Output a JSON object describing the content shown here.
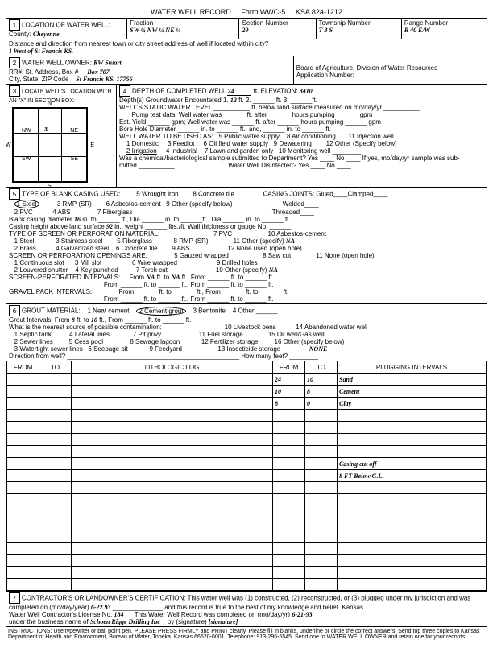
{
  "header": {
    "title": "WATER WELL RECORD",
    "form": "Form WWC-5",
    "ksa": "KSA 82a-1212"
  },
  "sec1": {
    "label": "LOCATION OF WATER WELL:",
    "county_label": "County:",
    "county": "Cheyenne",
    "fraction_label": "Fraction",
    "fraction": "SW ¼ NW ¼ NE ¼",
    "section_label": "Section Number",
    "section": "29",
    "township_label": "Township Number",
    "township": "T    3    S",
    "range_label": "Range Number",
    "range": "R   40   E/W",
    "distance_label": "Distance and direction from nearest town or city street address of well if located within city?",
    "distance": "1 West of St Francis KS."
  },
  "sec2": {
    "label": "WATER WELL OWNER:",
    "owner": "RW Stuart",
    "rr_label": "RR#, St. Address, Box #",
    "rr": "Box 707",
    "city_label": "City, State, ZIP Code",
    "city": "St Francis KS. 17756",
    "board": "Board of Agriculture, Division of Water Resources",
    "app_label": "Application Number:"
  },
  "sec3": {
    "label": "LOCATE WELL'S LOCATION WITH AN \"X\" IN SECTION BOX:",
    "nw": "NW",
    "ne": "NE",
    "sw": "SW",
    "se": "SE",
    "w": "W",
    "e": "E",
    "n": "N",
    "s": "S",
    "mile": "1 Mile"
  },
  "sec4": {
    "depth_label": "DEPTH OF COMPLETED WELL",
    "depth": "24",
    "depth_unit": "ft. ELEVATION:",
    "elev": "3410",
    "gw_label": "Depth(s) Groundwater Encountered   1.",
    "gw1": "12",
    "gw_mid": "ft.   2.",
    "gw_end": "ft.   3.",
    "gw_ft": "ft.",
    "swl_label": "WELL'S STATIC WATER LEVEL",
    "swl_end": "ft. below land surface measured on mo/day/yr",
    "pump_label": "Pump test data:  Well water was",
    "pump_end": "ft. after",
    "pump_hrs": "hours pumping",
    "pump_gpm": "gpm",
    "est_label": "Est. Yield",
    "est_mid": "gpm;  Well water was",
    "bore_label": "Bore Hole Diameter",
    "bore_mid": "in. to",
    "bore_end": "ft., and,",
    "bore_ft": "in. to",
    "bore_ft2": "ft.",
    "use_label": "WELL WATER TO BE USED AS:",
    "u1": "1 Domestic",
    "u2": "2 Irrigation",
    "u3": "3 Feedlot",
    "u4": "4 Industrial",
    "u5": "5 Public water supply",
    "u6": "6 Oil field water supply",
    "u7": "7 Lawn and garden only",
    "u8": "8 Air conditioning",
    "u9": "9 Dewatering",
    "u10": "10 Monitoring well",
    "u11": "11 Injection well",
    "u12": "12 Other (Specify below)",
    "chem_label": "Was a chemical/bacteriological sample submitted to Department? Yes",
    "chem_mid": "No",
    "chem_end": "If yes, mo/day/yr sample was sub-",
    "chem2": "mitted",
    "dis_label": "Water Well Disinfected?  Yes",
    "dis_no": "No"
  },
  "sec5": {
    "label": "TYPE OF BLANK CASING USED:",
    "c1": "1 Steel",
    "c2": "2 PVC",
    "c3": "3 RMP (SR)",
    "c4": "4 ABS",
    "c5": "5 Wrought iron",
    "c6": "6 Asbestos-cement",
    "c7": "7 Fiberglass",
    "c8": "8 Concrete tile",
    "c9": "9 Other (specify below)",
    "joints_label": "CASING JOINTS: Glued",
    "joints_c": "Clamped",
    "joints_w": "Welded",
    "joints_t": "Threaded",
    "bcd_label": "Blank casing diameter",
    "bcd": "16",
    "bcd_mid": "in. to",
    "bcd_ft": "ft., Dia",
    "bcd_end": "in. to",
    "ch_label": "Casing height above land surface",
    "ch": "92",
    "ch_mid": "in., weight",
    "ch_end": "lbs./ft. Wall thickness or gauge No.",
    "screen_label": "TYPE OF SCREEN OR PERFORATION MATERIAL:",
    "s1": "1 Steel",
    "s2": "2 Brass",
    "s3": "3 Stainless steel",
    "s4": "4 Galvanized steel",
    "s5": "5 Fiberglass",
    "s6": "6 Concrete tile",
    "s7": "7 PVC",
    "s8": "8 RMP (SR)",
    "s9": "9 ABS",
    "s10": "10 Asbestos-cement",
    "s11": "11 Other (specify)",
    "s11v": "NA",
    "s12": "12 None used (open hole)",
    "open_label": "SCREEN OR PERFORATION OPENINGS ARE:",
    "o1": "1 Continuous slot",
    "o2": "2 Louvered shutter",
    "o3": "3 Mill slot",
    "o4": "4 Key punched",
    "o5": "5 Gauzed wrapped",
    "o6": "6 Wire wrapped",
    "o7": "7 Torch cut",
    "o8": "8 Saw cut",
    "o9": "9 Drilled holes",
    "o10": "10 Other (specify)",
    "o10v": "NA",
    "o11": "11 None (open hole)",
    "spi_label": "SCREEN-PERFORATED INTERVALS:",
    "spi_from": "From",
    "spi_na": "NA",
    "spi_to": "ft. to",
    "spi_na2": "NA",
    "spi_ft": "ft., From",
    "spi_ft2": "ft.",
    "gpi_label": "GRAVEL PACK INTERVALS:",
    "gpi_from": "From",
    "gpi_to": "ft. to"
  },
  "sec6": {
    "label": "GROUT MATERIAL:",
    "g1": "1 Neat cement",
    "g2": "2 Cement grout",
    "g3": "3 Bentonite",
    "g4": "4 Other",
    "gi_label": "Grout Intervals:  From",
    "gi_from": "8",
    "gi_to_label": "ft. to",
    "gi_to": "10",
    "gi_end": "ft., From",
    "contam_label": "What is the nearest source of possible contamination:",
    "p1": "1 Septic tank",
    "p2": "2 Sewer lines",
    "p3": "3 Watertight sewer lines",
    "p4": "4 Lateral lines",
    "p5": "5 Cess pool",
    "p6": "6 Seepage pit",
    "p7": "7 Pit privy",
    "p8": "8 Sewage lagoon",
    "p9": "9 Feedyard",
    "p10": "10 Livestock pens",
    "p11": "11 Fuel storage",
    "p12": "12 Fertilizer storage",
    "p13": "13 Insecticide storage",
    "p14": "14 Abandoned water well",
    "p15": "15 Oil well/Gas well",
    "p16": "16 Other (specify below)",
    "p16v": "NONE",
    "dir_label": "Direction from well?",
    "feet_label": "How many feet?"
  },
  "log": {
    "h1": "FROM",
    "h2": "TO",
    "h3": "LITHOLOGIC LOG",
    "h4": "FROM",
    "h5": "TO",
    "h6": "PLUGGING INTERVALS",
    "rows": [
      {
        "f2": "24",
        "t2": "10",
        "p": "Sand"
      },
      {
        "f2": "10",
        "t2": "8",
        "p": "Cement"
      },
      {
        "f2": "8",
        "t2": "0",
        "p": "Clay"
      },
      {},
      {},
      {},
      {},
      {
        "p": "Casing cut off"
      },
      {
        "p": "8 FT Below G.L."
      },
      {},
      {},
      {},
      {},
      {},
      {},
      {},
      {},
      {}
    ]
  },
  "sec7": {
    "label": "CONTRACTOR'S OR LANDOWNER'S CERTIFICATION: This water well was (1) constructed, (2) reconstructed, or (3) plugged under my jurisdiction and was",
    "comp_label": "completed on (mo/day/year)",
    "comp": "6-22   93",
    "comp_end": "and this record is true to the best of my knowledge and belief. Kansas",
    "lic_label": "Water Well Contractor's License No.",
    "lic": "184",
    "lic_mid": "This Water Well Record was completed on (mo/day/yr)",
    "lic_date": "6-21-93",
    "bus_label": "under the business name of",
    "bus": "Schoen Rigge Drilling Inc",
    "sig_label": "by (signature)",
    "sig": "[signature]"
  },
  "footer": {
    "text": "INSTRUCTIONS: Use typewriter or ball point pen. PLEASE PRESS FIRMLY and PRINT clearly. Please fill in blanks, underline or circle the correct answers. Send top three copies to Kansas Department of Health and Environment, Bureau of Water, Topeka, Kansas 66620-0001. Telephone: 913-296-5545. Send one to WATER WELL OWNER and retain one for your records."
  }
}
